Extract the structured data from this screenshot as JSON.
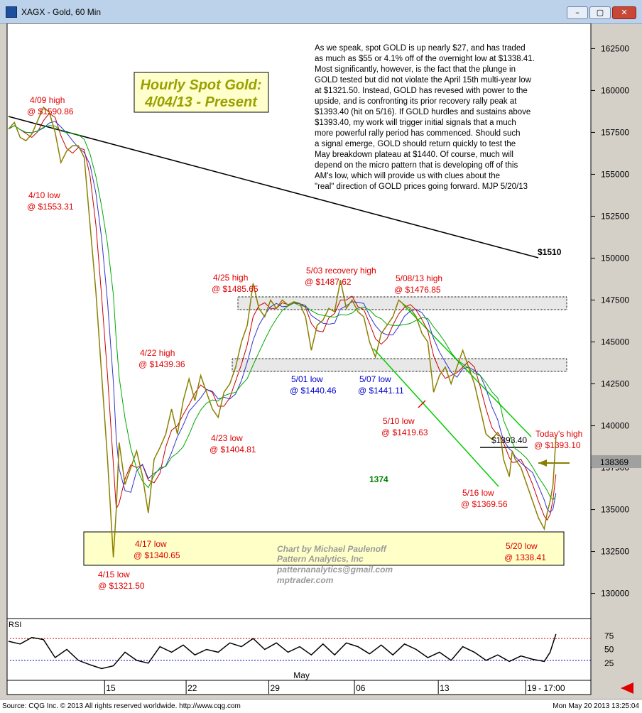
{
  "window": {
    "title": "XAGX - Gold, 60 Min",
    "minimize": "–",
    "restore": "▢",
    "close": "✕"
  },
  "status": {
    "source": "Source: CQG Inc. © 2013 All rights reserved worldwide. http://www.cqg.com",
    "datetime": "Mon May 20 2013 13:25:04"
  },
  "chart_data": {
    "type": "line",
    "title_line1": "Hourly Spot Gold:",
    "title_line2": "4/04/13 - Present",
    "commentary": [
      "As we speak, spot GOLD is up nearly $27, and has traded",
      "as much as $55 or 4.1% off of the overnight low at $1338.41.",
      "Most significantly, however, is the fact that the plunge in",
      "GOLD tested but did not violate the April 15th multi-year low",
      "at $1321.50. Instead, GOLD has revesed with power to the",
      "upside, and is confronting its prior recovery rally peak at",
      "$1393.40 (hit on 5/16). If GOLD hurdles and sustains above",
      "$1393.40, my work will trigger initial signals that a much",
      "more powerful rally period has commenced. Should such",
      "a signal emerge, GOLD should return quickly to test the",
      "May breakdown plateau at $1440.  Of course, much will",
      "depend on the micro pattern that is developing off of this",
      "AM's low, which will provide us with clues about the",
      "\"real\" direction of GOLD prices going forward. MJP 5/20/13"
    ],
    "credit": [
      "Chart by Michael Paulenoff",
      "Pattern Analytics, Inc",
      "patternanalytics@gmail.com",
      "mptrader.com"
    ],
    "ylim": [
      128500,
      164000
    ],
    "y_ticks": [
      {
        "v": 162500,
        "label": "162500"
      },
      {
        "v": 160000,
        "label": "160000"
      },
      {
        "v": 157500,
        "label": "157500"
      },
      {
        "v": 155000,
        "label": "155000"
      },
      {
        "v": 152500,
        "label": "152500"
      },
      {
        "v": 150000,
        "label": "150000"
      },
      {
        "v": 147500,
        "label": "147500"
      },
      {
        "v": 145000,
        "label": "145000"
      },
      {
        "v": 142500,
        "label": "142500"
      },
      {
        "v": 140000,
        "label": "140000"
      },
      {
        "v": 137500,
        "label": "137500"
      },
      {
        "v": 135000,
        "label": "135000"
      },
      {
        "v": 132500,
        "label": "132500"
      },
      {
        "v": 130000,
        "label": "130000"
      }
    ],
    "last_price": "138369",
    "x_ticks": [
      {
        "t": 0.165,
        "label": "15"
      },
      {
        "t": 0.305,
        "label": "22"
      },
      {
        "t": 0.447,
        "label": "29"
      },
      {
        "t": 0.594,
        "label": "06"
      },
      {
        "t": 0.738,
        "label": "13"
      },
      {
        "t": 0.888,
        "label": "19"
      }
    ],
    "x_tail_label": "- 17:00",
    "x_month_label": {
      "t": 0.504,
      "label": "May"
    },
    "price_path": [
      [
        0.0,
        157700
      ],
      [
        0.01,
        158100
      ],
      [
        0.02,
        157200
      ],
      [
        0.03,
        157000
      ],
      [
        0.04,
        157400
      ],
      [
        0.05,
        158200
      ],
      [
        0.06,
        159000
      ],
      [
        0.07,
        158700
      ],
      [
        0.08,
        157500
      ],
      [
        0.09,
        155700
      ],
      [
        0.1,
        156400
      ],
      [
        0.11,
        156700
      ],
      [
        0.12,
        156700
      ],
      [
        0.13,
        156000
      ],
      [
        0.14,
        152000
      ],
      [
        0.15,
        148000
      ],
      [
        0.16,
        143000
      ],
      [
        0.17,
        138000
      ],
      [
        0.18,
        132150
      ],
      [
        0.185,
        135000
      ],
      [
        0.19,
        139000
      ],
      [
        0.2,
        136500
      ],
      [
        0.21,
        137500
      ],
      [
        0.22,
        138500
      ],
      [
        0.23,
        137000
      ],
      [
        0.24,
        134800
      ],
      [
        0.25,
        138000
      ],
      [
        0.26,
        138700
      ],
      [
        0.27,
        139500
      ],
      [
        0.28,
        141000
      ],
      [
        0.29,
        139500
      ],
      [
        0.3,
        141500
      ],
      [
        0.31,
        142800
      ],
      [
        0.32,
        141500
      ],
      [
        0.33,
        143000
      ],
      [
        0.34,
        142000
      ],
      [
        0.35,
        141000
      ],
      [
        0.36,
        140500
      ],
      [
        0.37,
        142000
      ],
      [
        0.38,
        142500
      ],
      [
        0.39,
        143500
      ],
      [
        0.4,
        145000
      ],
      [
        0.41,
        146000
      ],
      [
        0.42,
        148500
      ],
      [
        0.43,
        147000
      ],
      [
        0.44,
        146500
      ],
      [
        0.45,
        147500
      ],
      [
        0.46,
        147000
      ],
      [
        0.47,
        147500
      ],
      [
        0.48,
        147200
      ],
      [
        0.49,
        147400
      ],
      [
        0.5,
        147300
      ],
      [
        0.51,
        146500
      ],
      [
        0.52,
        144500
      ],
      [
        0.53,
        146000
      ],
      [
        0.54,
        146300
      ],
      [
        0.55,
        147000
      ],
      [
        0.56,
        146800
      ],
      [
        0.57,
        148700
      ],
      [
        0.58,
        147000
      ],
      [
        0.59,
        147500
      ],
      [
        0.6,
        146800
      ],
      [
        0.61,
        146500
      ],
      [
        0.62,
        145000
      ],
      [
        0.63,
        144100
      ],
      [
        0.64,
        145500
      ],
      [
        0.65,
        146000
      ],
      [
        0.66,
        146500
      ],
      [
        0.67,
        147500
      ],
      [
        0.68,
        147200
      ],
      [
        0.69,
        147000
      ],
      [
        0.7,
        146500
      ],
      [
        0.71,
        145500
      ],
      [
        0.72,
        145000
      ],
      [
        0.73,
        142000
      ],
      [
        0.74,
        143000
      ],
      [
        0.75,
        143500
      ],
      [
        0.76,
        142500
      ],
      [
        0.77,
        143500
      ],
      [
        0.78,
        144500
      ],
      [
        0.79,
        143500
      ],
      [
        0.8,
        142500
      ],
      [
        0.81,
        141000
      ],
      [
        0.82,
        139500
      ],
      [
        0.83,
        139200
      ],
      [
        0.84,
        139600
      ],
      [
        0.845,
        139340
      ],
      [
        0.85,
        138000
      ],
      [
        0.86,
        136960
      ],
      [
        0.865,
        138500
      ],
      [
        0.87,
        138000
      ],
      [
        0.88,
        137500
      ],
      [
        0.89,
        136500
      ],
      [
        0.9,
        135500
      ],
      [
        0.91,
        134500
      ],
      [
        0.92,
        133841
      ],
      [
        0.925,
        134800
      ],
      [
        0.93,
        135500
      ],
      [
        0.935,
        136500
      ],
      [
        0.94,
        139310
      ]
    ],
    "rsi": {
      "label": "RSI",
      "ticks": [
        {
          "v": 75,
          "label": "75"
        },
        {
          "v": 50,
          "label": "50"
        },
        {
          "v": 25,
          "label": "25"
        }
      ],
      "overbought": 70,
      "oversold": 30,
      "values": [
        [
          0.0,
          65
        ],
        [
          0.02,
          60
        ],
        [
          0.04,
          72
        ],
        [
          0.06,
          68
        ],
        [
          0.08,
          35
        ],
        [
          0.1,
          50
        ],
        [
          0.12,
          30
        ],
        [
          0.14,
          22
        ],
        [
          0.16,
          15
        ],
        [
          0.18,
          20
        ],
        [
          0.2,
          45
        ],
        [
          0.22,
          30
        ],
        [
          0.24,
          25
        ],
        [
          0.26,
          55
        ],
        [
          0.28,
          45
        ],
        [
          0.3,
          58
        ],
        [
          0.32,
          40
        ],
        [
          0.34,
          50
        ],
        [
          0.36,
          45
        ],
        [
          0.38,
          62
        ],
        [
          0.4,
          55
        ],
        [
          0.42,
          70
        ],
        [
          0.44,
          50
        ],
        [
          0.46,
          62
        ],
        [
          0.48,
          45
        ],
        [
          0.5,
          55
        ],
        [
          0.52,
          40
        ],
        [
          0.54,
          60
        ],
        [
          0.56,
          40
        ],
        [
          0.58,
          62
        ],
        [
          0.6,
          55
        ],
        [
          0.62,
          42
        ],
        [
          0.64,
          58
        ],
        [
          0.66,
          40
        ],
        [
          0.68,
          60
        ],
        [
          0.7,
          50
        ],
        [
          0.72,
          35
        ],
        [
          0.74,
          45
        ],
        [
          0.76,
          30
        ],
        [
          0.78,
          55
        ],
        [
          0.8,
          45
        ],
        [
          0.82,
          30
        ],
        [
          0.84,
          40
        ],
        [
          0.86,
          28
        ],
        [
          0.88,
          38
        ],
        [
          0.9,
          32
        ],
        [
          0.92,
          28
        ],
        [
          0.93,
          45
        ],
        [
          0.94,
          78
        ]
      ]
    }
  },
  "annotations": {
    "apr09_a": "4/09 high",
    "apr09_b": "@ $1590.86",
    "apr10_a": "4/10 low",
    "apr10_b": "@ $1553.31",
    "apr15_a": "4/15 low",
    "apr15_b": "@ $1321.50",
    "apr17_a": "4/17 low",
    "apr17_b": "@ $1340.65",
    "apr22_a": "4/22 high",
    "apr22_b": "@ $1439.36",
    "apr23_a": "4/23 low",
    "apr23_b": "@ $1404.81",
    "apr25_a": "4/25 high",
    "apr25_b": "@ $1485.65",
    "may01_a": "5/01 low",
    "may01_b": "@ $1440.46",
    "may03_a": "5/03 recovery high",
    "may03_b": "@ $1487.62",
    "may07_a": "5/07 low",
    "may07_b": "@ $1441.11",
    "may08_a": "5/08/13 high",
    "may08_b": "@ $1476.85",
    "may10_a": "5/10 low",
    "may10_b": "@ $1419.63",
    "may16_a": "5/16 low",
    "may16_b": "@ $1369.56",
    "may20_a": "5/20 low",
    "may20_b": "@ 1338.41",
    "today_a": "Today's high",
    "today_b": "@ $1393.10",
    "level_1393": "$1393.40",
    "level_1510": "$1510",
    "label_1374": "1374"
  }
}
